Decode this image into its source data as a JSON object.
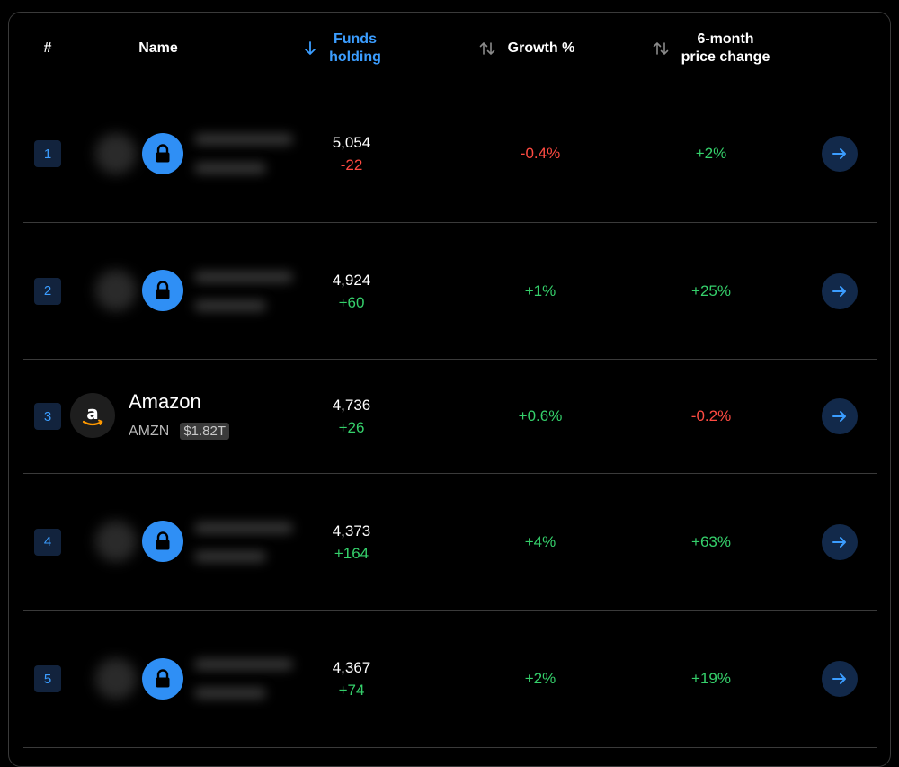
{
  "header": {
    "rank": "#",
    "name": "Name",
    "funds_line1": "Funds",
    "funds_line2": "holding",
    "growth": "Growth %",
    "price_line1": "6-month",
    "price_line2": "price change"
  },
  "rows": [
    {
      "rank": "1",
      "locked": true,
      "funds": "5,054",
      "funds_change": "-22",
      "growth": "-0.4%",
      "price_change": "+2%"
    },
    {
      "rank": "2",
      "locked": true,
      "funds": "4,924",
      "funds_change": "+60",
      "growth": "+1%",
      "price_change": "+25%"
    },
    {
      "rank": "3",
      "locked": false,
      "name": "Amazon",
      "ticker": "AMZN",
      "market_cap": "$1.82T",
      "logo_letter": "a",
      "funds": "4,736",
      "funds_change": "+26",
      "growth": "+0.6%",
      "price_change": "-0.2%"
    },
    {
      "rank": "4",
      "locked": true,
      "funds": "4,373",
      "funds_change": "+164",
      "growth": "+4%",
      "price_change": "+63%"
    },
    {
      "rank": "5",
      "locked": true,
      "funds": "4,367",
      "funds_change": "+74",
      "growth": "+2%",
      "price_change": "+19%"
    }
  ],
  "colors": {
    "accent": "#3b9dff",
    "positive": "#35d06b",
    "negative": "#ff4b42",
    "lock_button": "#2f8ff5",
    "rank_badge_bg": "#12233d",
    "arrow_button_bg": "#12294a"
  },
  "icons": {
    "sort_active": "arrow-down-icon",
    "sort_inactive": "sort-updown-icon",
    "lock": "lock-icon",
    "row_action": "arrow-right-icon"
  }
}
